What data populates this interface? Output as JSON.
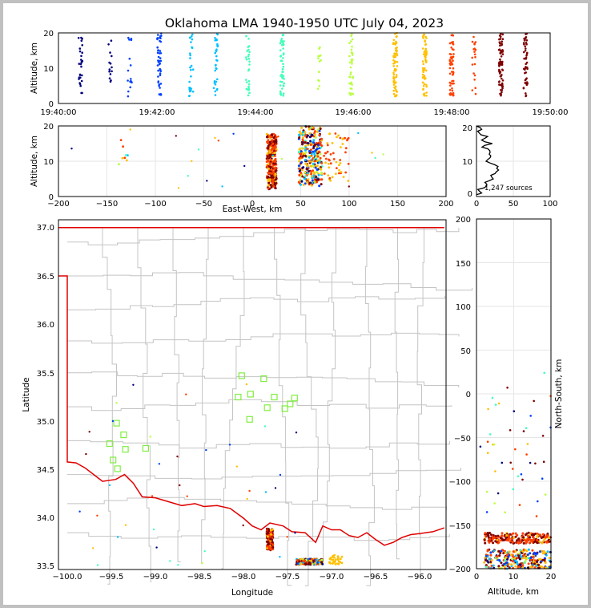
{
  "title": "Oklahoma LMA 1940-1950 UTC July 04, 2023",
  "source_count_label": "1,247 sources",
  "chart_data": [
    {
      "type": "scatter",
      "panel": "altitude-time",
      "ylabel": "Altitude, km",
      "xlim": [
        "19:40:00",
        "19:50:00"
      ],
      "ylim": [
        0,
        20
      ],
      "xticks": [
        "19:40:00",
        "19:42:00",
        "19:44:00",
        "19:46:00",
        "19:48:00",
        "19:50:00"
      ],
      "yticks": [
        "0",
        "10",
        "20"
      ],
      "clusters_minutes": [
        {
          "t": 0.45,
          "n": 28
        },
        {
          "t": 1.05,
          "n": 14
        },
        {
          "t": 1.45,
          "n": 16
        },
        {
          "t": 2.05,
          "n": 46
        },
        {
          "t": 2.7,
          "n": 26
        },
        {
          "t": 3.2,
          "n": 32
        },
        {
          "t": 3.85,
          "n": 28
        },
        {
          "t": 4.55,
          "n": 52
        },
        {
          "t": 5.3,
          "n": 14
        },
        {
          "t": 5.95,
          "n": 36
        },
        {
          "t": 6.85,
          "n": 70
        },
        {
          "t": 7.45,
          "n": 60
        },
        {
          "t": 8.0,
          "n": 58
        },
        {
          "t": 8.45,
          "n": 20
        },
        {
          "t": 9.0,
          "n": 74
        },
        {
          "t": 9.5,
          "n": 48
        }
      ]
    },
    {
      "type": "scatter",
      "panel": "east-west-altitude",
      "xlabel": "East-West, km",
      "ylabel": "Altitude, km",
      "xlim": [
        -200,
        200
      ],
      "ylim": [
        0,
        20
      ],
      "xticks": [
        "−200",
        "−150",
        "−100",
        "−50",
        "0",
        "50",
        "100",
        "150",
        "200"
      ],
      "yticks": [
        "0",
        "10",
        "20"
      ],
      "clusters_km": [
        {
          "x": 20,
          "n": 260
        },
        {
          "x": 60,
          "n": 300
        },
        {
          "x": 85,
          "n": 60
        },
        {
          "x": -133,
          "n": 8
        },
        {
          "x": -120,
          "n": 3
        }
      ]
    },
    {
      "type": "line",
      "panel": "altitude-histogram",
      "xlim": [
        0,
        100
      ],
      "ylim": [
        0,
        20
      ],
      "xticks": [
        "0",
        "50",
        "100"
      ],
      "yticks": [
        "0",
        "10",
        "20"
      ],
      "profile": [
        [
          0.5,
          2
        ],
        [
          1,
          4
        ],
        [
          2,
          6
        ],
        [
          3,
          10
        ],
        [
          4,
          14
        ],
        [
          5,
          18
        ],
        [
          6,
          22
        ],
        [
          7,
          24
        ],
        [
          8,
          30
        ],
        [
          9,
          22
        ],
        [
          10,
          18
        ],
        [
          11,
          16
        ],
        [
          12,
          20
        ],
        [
          13,
          14
        ],
        [
          14,
          12
        ],
        [
          15,
          18
        ],
        [
          16,
          10
        ],
        [
          17,
          12
        ],
        [
          18,
          6
        ],
        [
          19,
          4
        ],
        [
          20,
          2
        ]
      ]
    },
    {
      "type": "scatter",
      "panel": "plan-view-map",
      "xlabel": "Longitude",
      "ylabel": "Latitude",
      "xlim": [
        -100.1,
        -95.7
      ],
      "ylim": [
        33.47,
        37.08
      ],
      "xticks": [
        "−100.0",
        "−99.5",
        "−99.0",
        "−98.5",
        "−98.0",
        "−97.5",
        "−97.0",
        "−96.5",
        "−96.0"
      ],
      "yticks": [
        "33.5",
        "34.0",
        "34.5",
        "35.0",
        "35.5",
        "36.0",
        "36.5",
        "37.0"
      ],
      "stations": [
        [
          -99.52,
          34.77
        ],
        [
          -99.44,
          34.98
        ],
        [
          -99.36,
          34.86
        ],
        [
          -99.34,
          34.71
        ],
        [
          -99.48,
          34.6
        ],
        [
          -99.43,
          34.51
        ],
        [
          -99.11,
          34.72
        ],
        [
          -98.06,
          35.25
        ],
        [
          -98.02,
          35.47
        ],
        [
          -97.92,
          35.28
        ],
        [
          -97.93,
          35.02
        ],
        [
          -97.77,
          35.44
        ],
        [
          -97.73,
          35.14
        ],
        [
          -97.65,
          35.25
        ],
        [
          -97.53,
          35.13
        ],
        [
          -97.47,
          35.18
        ],
        [
          -97.42,
          35.24
        ]
      ]
    },
    {
      "type": "scatter",
      "panel": "north-south-altitude",
      "xlabel": "Altitude, km",
      "ylabel": "North-South, km",
      "xlim": [
        0,
        20
      ],
      "ylim": [
        -200,
        200
      ],
      "xticks": [
        "0",
        "10",
        "20"
      ],
      "yticks": [
        "−200",
        "−150",
        "−100",
        "−50",
        "0",
        "50",
        "100",
        "150",
        "200"
      ]
    }
  ],
  "colors": {
    "state_border": "#e00000",
    "county_lines": "#c4c4c4",
    "station_marker": "#80ee40",
    "time_colormap": [
      "#00007f",
      "#0040ff",
      "#00c0ff",
      "#40ffb8",
      "#b8ff40",
      "#ffc000",
      "#ff4000",
      "#7f0000"
    ]
  }
}
